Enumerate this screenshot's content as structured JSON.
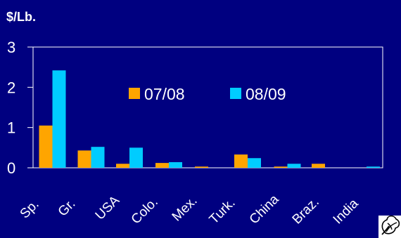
{
  "chart_data": {
    "type": "bar",
    "title": "",
    "xlabel": "",
    "ylabel": "$/Lb.",
    "ylim": [
      0,
      3
    ],
    "yticks": [
      "0",
      "1",
      "2",
      "3"
    ],
    "grid": false,
    "legend_position": "center-top",
    "categories": [
      "Sp.",
      "Gr.",
      "USA",
      "Colo.",
      "Mex.",
      "Turk.",
      "China",
      "Braz.",
      "India"
    ],
    "series": [
      {
        "name": "07/08",
        "color": "#ffa500",
        "values": [
          1.05,
          0.43,
          0.1,
          0.12,
          0.03,
          0.33,
          0.03,
          0.1,
          0.0
        ]
      },
      {
        "name": "08/09",
        "color": "#00ccff",
        "values": [
          2.42,
          0.52,
          0.5,
          0.14,
          0.0,
          0.24,
          0.1,
          0.0,
          0.03
        ]
      }
    ],
    "colors": {
      "background": "#000080",
      "axis": "#ffffff",
      "text": "#ffffff"
    },
    "logo_icon": "cotton-boll-icon"
  }
}
